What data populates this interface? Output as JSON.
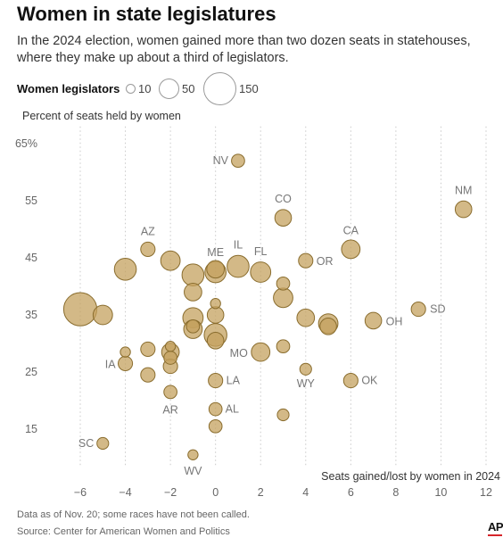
{
  "header": {
    "title": "Women in state legislatures",
    "subtitle": "In the 2024 election, women gained more than two dozen seats in statehouses, where they make up about a third of legislators."
  },
  "legend": {
    "title": "Women legislators",
    "sizes": [
      {
        "value": 10,
        "label": "10"
      },
      {
        "value": 50,
        "label": "50"
      },
      {
        "value": 150,
        "label": "150"
      }
    ]
  },
  "chart_data": {
    "type": "scatter",
    "title": "Women in state legislatures",
    "xlabel": "Seats gained/lost by women in 2024",
    "ylabel": "Percent of seats held by women",
    "xlim": [
      -7,
      13
    ],
    "ylim": [
      8,
      68
    ],
    "xticks": [
      -6,
      -4,
      -2,
      0,
      2,
      4,
      6,
      8,
      10,
      12
    ],
    "xtick_labels": [
      "−6",
      "−4",
      "−2",
      "0",
      "2",
      "4",
      "6",
      "8",
      "10",
      "12"
    ],
    "yticks": [
      15,
      25,
      35,
      45,
      55,
      65
    ],
    "ytick_labels": [
      "15",
      "25",
      "35",
      "45",
      "55",
      "65%"
    ],
    "grid": "vertical",
    "bubble_color": "#c4a25f",
    "bubble_stroke": "#8a6d2e",
    "size_encoding": "Women legislators",
    "points": [
      {
        "x": 1,
        "y": 62,
        "size": 25,
        "label": "NV"
      },
      {
        "x": 11,
        "y": 53.5,
        "size": 40,
        "label": "NM"
      },
      {
        "x": 3,
        "y": 52,
        "size": 40,
        "label": "CO"
      },
      {
        "x": -3,
        "y": 46.5,
        "size": 30,
        "label": "AZ"
      },
      {
        "x": 6,
        "y": 46.5,
        "size": 50,
        "label": "CA"
      },
      {
        "x": 4,
        "y": 44.5,
        "size": 30,
        "label": "OR"
      },
      {
        "x": -2,
        "y": 44.5,
        "size": 55
      },
      {
        "x": -4,
        "y": 43,
        "size": 70
      },
      {
        "x": -1,
        "y": 42,
        "size": 70
      },
      {
        "x": 0,
        "y": 42.5,
        "size": 65,
        "label": "ME"
      },
      {
        "x": 0,
        "y": 43,
        "size": 45
      },
      {
        "x": 1,
        "y": 43.5,
        "size": 70,
        "label": "IL"
      },
      {
        "x": 2,
        "y": 42.5,
        "size": 60,
        "label": "FL"
      },
      {
        "x": 3,
        "y": 40.5,
        "size": 25
      },
      {
        "x": -1,
        "y": 39,
        "size": 45
      },
      {
        "x": 3,
        "y": 38,
        "size": 55
      },
      {
        "x": 0,
        "y": 37,
        "size": 15
      },
      {
        "x": -6,
        "y": 36,
        "size": 160
      },
      {
        "x": -5,
        "y": 35,
        "size": 55
      },
      {
        "x": 0,
        "y": 35,
        "size": 40
      },
      {
        "x": -1,
        "y": 34.5,
        "size": 60
      },
      {
        "x": 4,
        "y": 34.5,
        "size": 45
      },
      {
        "x": 5,
        "y": 33.5,
        "size": 55
      },
      {
        "x": 5,
        "y": 33,
        "size": 40
      },
      {
        "x": 7,
        "y": 34,
        "size": 40,
        "label": "OH"
      },
      {
        "x": 9,
        "y": 36,
        "size": 30,
        "label": "SD"
      },
      {
        "x": -1,
        "y": 32.5,
        "size": 50
      },
      {
        "x": -1,
        "y": 33,
        "size": 25
      },
      {
        "x": 0,
        "y": 31.5,
        "size": 75
      },
      {
        "x": 0,
        "y": 30.5,
        "size": 40,
        "label": "MO"
      },
      {
        "x": 2,
        "y": 28.5,
        "size": 50
      },
      {
        "x": 3,
        "y": 29.5,
        "size": 25
      },
      {
        "x": -2,
        "y": 29.5,
        "size": 15
      },
      {
        "x": -3,
        "y": 29,
        "size": 30
      },
      {
        "x": -2,
        "y": 28.5,
        "size": 45
      },
      {
        "x": -2,
        "y": 27.5,
        "size": 25
      },
      {
        "x": -4,
        "y": 28.5,
        "size": 15
      },
      {
        "x": -4,
        "y": 26.5,
        "size": 30,
        "label": "IA"
      },
      {
        "x": -2,
        "y": 26,
        "size": 30
      },
      {
        "x": -3,
        "y": 24.5,
        "size": 30
      },
      {
        "x": 4,
        "y": 25.5,
        "size": 20,
        "label": "WY"
      },
      {
        "x": 0,
        "y": 23.5,
        "size": 30,
        "label": "LA"
      },
      {
        "x": 6,
        "y": 23.5,
        "size": 30,
        "label": "OK"
      },
      {
        "x": -2,
        "y": 21.5,
        "size": 25,
        "label": "AR"
      },
      {
        "x": 0,
        "y": 18.5,
        "size": 25,
        "label": "AL"
      },
      {
        "x": 3,
        "y": 17.5,
        "size": 20
      },
      {
        "x": 0,
        "y": 15.5,
        "size": 25
      },
      {
        "x": -5,
        "y": 12.5,
        "size": 20,
        "label": "SC"
      },
      {
        "x": -1,
        "y": 10.5,
        "size": 15,
        "label": "WV"
      }
    ]
  },
  "footer": {
    "note": "Data as of Nov. 20; some races have not been called.",
    "source": "Source: Center for American Women and Politics",
    "logo": "AP"
  }
}
